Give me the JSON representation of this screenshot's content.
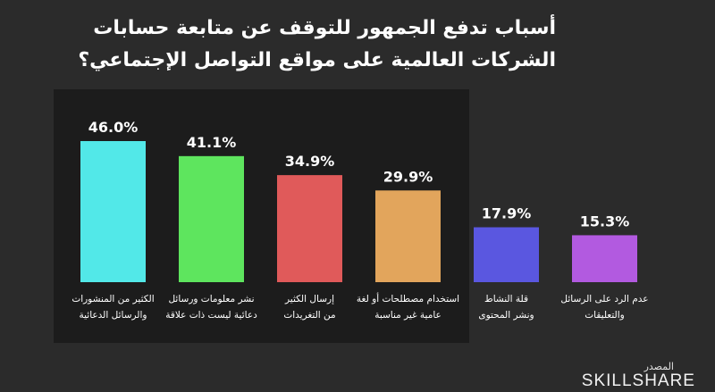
{
  "title_line1": "أسباب تدفع الجمهور للتوقف عن متابعة حسابات",
  "title_line2": "الشركات العالمية على مواقع التواصل الإجتماعي؟",
  "source_label": "المصدر",
  "brand": "SKILLSHARE",
  "colors": {
    "background": "#2b2b2b",
    "panel": "#1c1c1c",
    "text": "#ffffff"
  },
  "chart_data": {
    "type": "bar",
    "title": "أسباب تدفع الجمهور للتوقف عن متابعة حسابات الشركات العالمية على مواقع التواصل الإجتماعي؟",
    "categories": [
      [
        "الكثير من المنشورات",
        "والرسائل الدعائية"
      ],
      [
        "نشر معلومات ورسائل",
        "دعائية ليست ذات علاقة"
      ],
      [
        "إرسال الكثير",
        "من التغريدات"
      ],
      [
        "استخدام مصطلحات أو لغة",
        "عامية غير مناسبة"
      ],
      [
        "قلة النشاط",
        "ونشر المحتوى"
      ],
      [
        "عدم الرد على الرسائل",
        "والتعليقات"
      ]
    ],
    "values": [
      46.0,
      41.1,
      34.9,
      29.9,
      17.9,
      15.3
    ],
    "value_labels": [
      "46.0%",
      "41.1%",
      "34.9%",
      "29.9%",
      "17.9%",
      "15.3%"
    ],
    "bar_colors": [
      "#52e8e8",
      "#5ee55e",
      "#e05a5a",
      "#e2a55c",
      "#5a57e0",
      "#b25ae0"
    ],
    "highlighted_count": 4,
    "ylim": [
      0,
      46.0
    ],
    "grid": false,
    "legend": "none"
  }
}
